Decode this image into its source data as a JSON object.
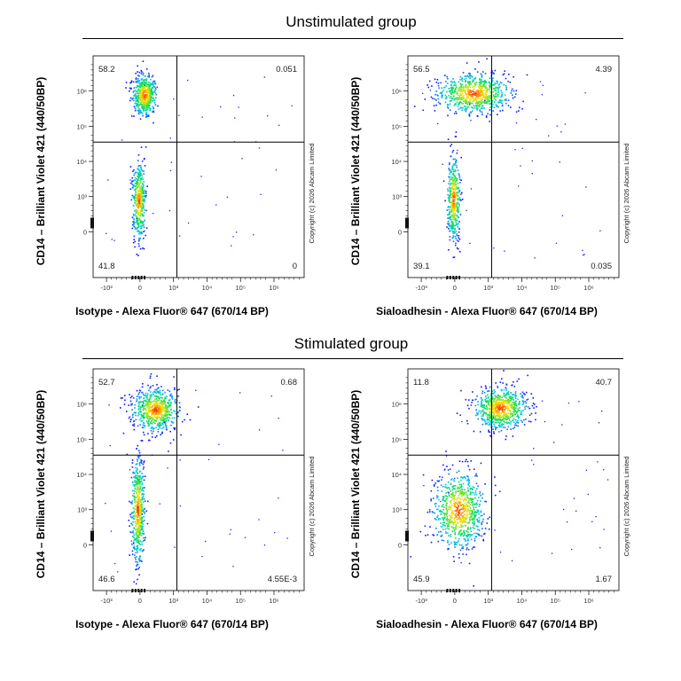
{
  "groups": [
    {
      "title": "Unstimulated group"
    },
    {
      "title": "Stimulated group"
    }
  ],
  "copyright": "Copyright (c) 2026 Abcam Limited",
  "colors": {
    "low": "#1a1aff",
    "mid": "#00e060",
    "high": "#ffe600",
    "peak": "#ff2000"
  },
  "chart_data": [
    {
      "type": "scatter",
      "panel": "unstimulated-isotype",
      "xlabel": "Isotype - Alexa Fluor® 647 (670/14 BP)",
      "ylabel": "CD14 – Brilliant Violet 421 (440/50BP)",
      "scale": "biexponential",
      "x_ticks": [
        "-10³",
        "0",
        "10³",
        "10⁴",
        "10⁵",
        "10⁶"
      ],
      "y_ticks": [
        "0",
        "10³",
        "10⁴",
        "10⁵",
        "10⁶"
      ],
      "quadrants": {
        "upper_left": "58.2",
        "upper_right": "0.051",
        "lower_left": "41.8",
        "lower_right": "0"
      },
      "populations": [
        {
          "x": 0.12,
          "y": 3.9,
          "sx": 0.18,
          "sy": 0.3,
          "n": 520
        },
        {
          "x": -0.05,
          "y": 0.9,
          "sx": 0.1,
          "sy": 0.55,
          "n": 420
        }
      ]
    },
    {
      "type": "scatter",
      "panel": "unstimulated-sialoadhesin",
      "xlabel": "Sialoadhesin - Alexa Fluor® 647 (670/14 BP)",
      "ylabel": "CD14 – Brilliant Violet 421 (440/50BP)",
      "scale": "biexponential",
      "x_ticks": [
        "-10³",
        "0",
        "10³",
        "10⁴",
        "10⁵",
        "10⁶"
      ],
      "y_ticks": [
        "0",
        "10³",
        "10⁴",
        "10⁵",
        "10⁶"
      ],
      "quadrants": {
        "upper_left": "56.5",
        "upper_right": "4.39",
        "lower_left": "39.1",
        "lower_right": "0.035"
      },
      "populations": [
        {
          "x": 0.55,
          "y": 3.95,
          "sx": 0.55,
          "sy": 0.28,
          "n": 700
        },
        {
          "x": -0.05,
          "y": 0.95,
          "sx": 0.1,
          "sy": 0.6,
          "n": 420
        }
      ]
    },
    {
      "type": "scatter",
      "panel": "stimulated-isotype",
      "xlabel": "Isotype - Alexa Fluor® 647 (670/14 BP)",
      "ylabel": "CD14 – Brilliant Violet 421 (440/50BP)",
      "scale": "biexponential",
      "x_ticks": [
        "-10³",
        "0",
        "10³",
        "10⁴",
        "10⁵",
        "10⁶"
      ],
      "y_ticks": [
        "0",
        "10³",
        "10⁴",
        "10⁵",
        "10⁶"
      ],
      "quadrants": {
        "upper_left": "52.7",
        "upper_right": "0.68",
        "lower_left": "46.6",
        "lower_right": "4.55E-3"
      },
      "populations": [
        {
          "x": 0.45,
          "y": 3.85,
          "sx": 0.35,
          "sy": 0.3,
          "n": 650
        },
        {
          "x": -0.08,
          "y": 1.0,
          "sx": 0.1,
          "sy": 0.75,
          "n": 500
        }
      ]
    },
    {
      "type": "scatter",
      "panel": "stimulated-sialoadhesin",
      "xlabel": "Sialoadhesin - Alexa Fluor® 647 (670/14 BP)",
      "ylabel": "CD14 – Brilliant Violet 421 (440/50BP)",
      "scale": "biexponential",
      "x_ticks": [
        "-10³",
        "0",
        "10³",
        "10⁴",
        "10⁵",
        "10⁶"
      ],
      "y_ticks": [
        "0",
        "10³",
        "10⁴",
        "10⁵",
        "10⁶"
      ],
      "quadrants": {
        "upper_left": "11.8",
        "upper_right": "40.7",
        "lower_left": "45.9",
        "lower_right": "1.67"
      },
      "populations": [
        {
          "x": 1.35,
          "y": 3.9,
          "sx": 0.4,
          "sy": 0.3,
          "n": 700
        },
        {
          "x": 0.1,
          "y": 1.0,
          "sx": 0.38,
          "sy": 0.55,
          "n": 750
        }
      ]
    }
  ]
}
